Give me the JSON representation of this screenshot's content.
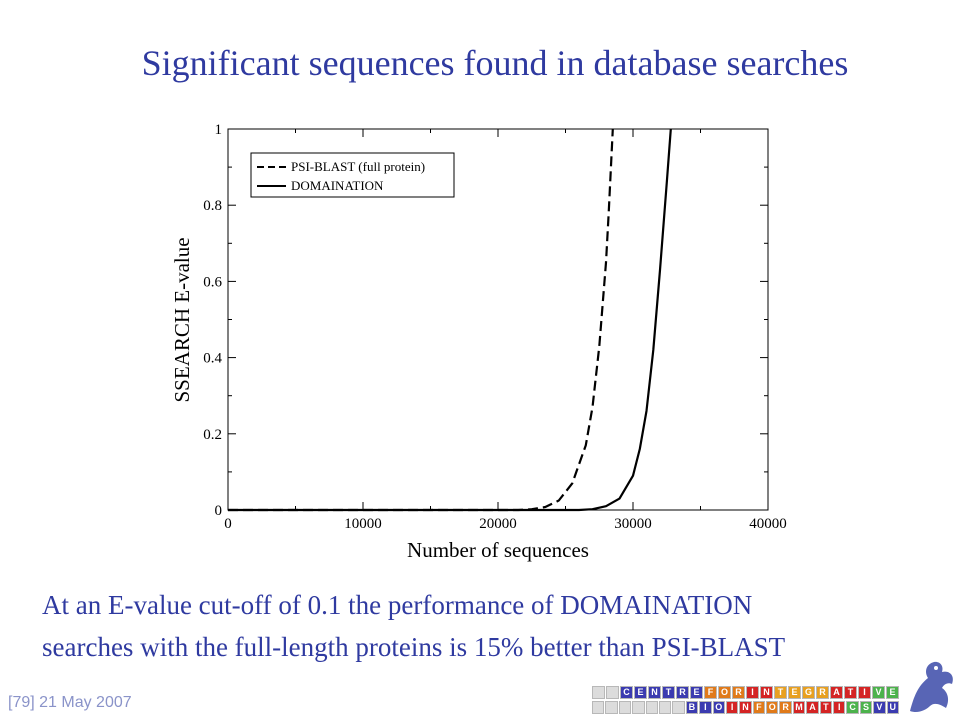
{
  "slide": {
    "title": "Significant sequences found in database searches",
    "caption_line1": "At an E-value cut-off of 0.1 the performance of DOMAINATION",
    "caption_line2": "searches with the full-length proteins is 15% better than PSI-BLAST",
    "footer": "[79] 21 May 2007",
    "logo": {
      "row1": [
        {
          "ch": "",
          "color": "#dcdcdc"
        },
        {
          "ch": "",
          "color": "#dcdcdc"
        },
        {
          "ch": "C",
          "color": "#3b3bb0"
        },
        {
          "ch": "E",
          "color": "#3b3bb0"
        },
        {
          "ch": "N",
          "color": "#3b3bb0"
        },
        {
          "ch": "T",
          "color": "#3b3bb0"
        },
        {
          "ch": "R",
          "color": "#3b3bb0"
        },
        {
          "ch": "E",
          "color": "#3b3bb0"
        },
        {
          "ch": "F",
          "color": "#e07a1a"
        },
        {
          "ch": "O",
          "color": "#e07a1a"
        },
        {
          "ch": "R",
          "color": "#e07a1a"
        },
        {
          "ch": "I",
          "color": "#d42424"
        },
        {
          "ch": "N",
          "color": "#d42424"
        },
        {
          "ch": "T",
          "color": "#e8a020"
        },
        {
          "ch": "E",
          "color": "#e8a020"
        },
        {
          "ch": "G",
          "color": "#e8a020"
        },
        {
          "ch": "R",
          "color": "#e8a020"
        },
        {
          "ch": "A",
          "color": "#d42424"
        },
        {
          "ch": "T",
          "color": "#d42424"
        },
        {
          "ch": "I",
          "color": "#d42424"
        },
        {
          "ch": "V",
          "color": "#4cb24c"
        },
        {
          "ch": "E",
          "color": "#4cb24c"
        }
      ],
      "row2": [
        {
          "ch": "",
          "color": "#dcdcdc"
        },
        {
          "ch": "",
          "color": "#dcdcdc"
        },
        {
          "ch": "",
          "color": "#dcdcdc"
        },
        {
          "ch": "",
          "color": "#dcdcdc"
        },
        {
          "ch": "",
          "color": "#dcdcdc"
        },
        {
          "ch": "",
          "color": "#dcdcdc"
        },
        {
          "ch": "",
          "color": "#dcdcdc"
        },
        {
          "ch": "B",
          "color": "#3b3bb0"
        },
        {
          "ch": "I",
          "color": "#3b3bb0"
        },
        {
          "ch": "O",
          "color": "#3b3bb0"
        },
        {
          "ch": "I",
          "color": "#d42424"
        },
        {
          "ch": "N",
          "color": "#d42424"
        },
        {
          "ch": "F",
          "color": "#e07a1a"
        },
        {
          "ch": "O",
          "color": "#e07a1a"
        },
        {
          "ch": "R",
          "color": "#e07a1a"
        },
        {
          "ch": "M",
          "color": "#d42424"
        },
        {
          "ch": "A",
          "color": "#d42424"
        },
        {
          "ch": "T",
          "color": "#d42424"
        },
        {
          "ch": "I",
          "color": "#d42424"
        },
        {
          "ch": "C",
          "color": "#4cb24c"
        },
        {
          "ch": "S",
          "color": "#4cb24c"
        },
        {
          "ch": "V",
          "color": "#3b3bb0"
        },
        {
          "ch": "U",
          "color": "#3b3bb0"
        }
      ]
    },
    "colors": {
      "title": "#2f3aa0",
      "footer": "#8a93c9"
    }
  },
  "chart_data": {
    "type": "line",
    "title": "",
    "xlabel": "Number of sequences",
    "ylabel": "SSEARCH  E-value",
    "xlim": [
      0,
      40000
    ],
    "ylim": [
      0,
      1
    ],
    "xticks": [
      "0",
      "10000",
      "20000",
      "30000",
      "40000"
    ],
    "yticks": [
      "0",
      "0.2",
      "0.4",
      "0.6",
      "0.8",
      "1"
    ],
    "legend_position": "top-left",
    "grid": false,
    "series": [
      {
        "name": "PSI-BLAST (full protein)",
        "style": "dashed",
        "x": [
          0,
          21500,
          22500,
          23500,
          24500,
          25500,
          26500,
          27000,
          27500,
          28000,
          28200,
          28500
        ],
        "y": [
          0,
          0.0,
          0.002,
          0.008,
          0.025,
          0.07,
          0.17,
          0.27,
          0.43,
          0.65,
          0.78,
          1.0
        ]
      },
      {
        "name": "DOMAINATION",
        "style": "solid",
        "x": [
          0,
          26000,
          27000,
          28000,
          29000,
          30000,
          30500,
          31000,
          31500,
          32000,
          32500,
          32800
        ],
        "y": [
          0,
          0.0,
          0.002,
          0.01,
          0.03,
          0.09,
          0.16,
          0.26,
          0.42,
          0.63,
          0.86,
          1.0
        ]
      }
    ]
  }
}
